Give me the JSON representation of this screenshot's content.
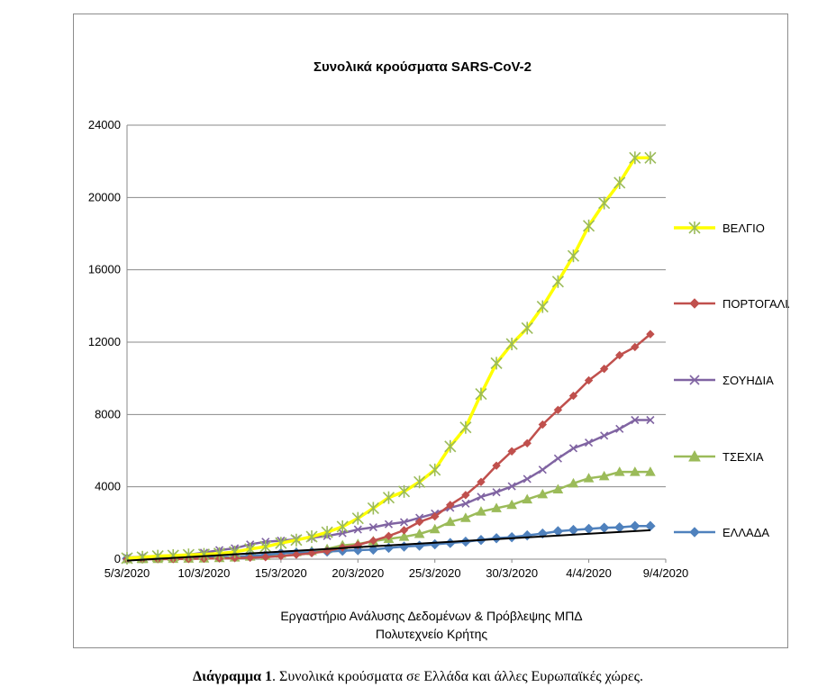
{
  "chart_data": {
    "type": "line",
    "title": "Συνολικά κρούσματα SARS-CoV-2",
    "source_lines": [
      "Εργαστήριο Ανάλυσης Δεδομένων & Πρόβλεψης ΜΠΔ",
      "Πολυτεχνείο Κρήτης"
    ],
    "x_ticks": [
      "5/3/2020",
      "10/3/2020",
      "15/3/2020",
      "20/3/2020",
      "25/3/2020",
      "30/3/2020",
      "4/4/2020",
      "9/4/2020"
    ],
    "x_start": "5/3/2020",
    "x_end": "9/4/2020",
    "ylim": [
      0,
      24000
    ],
    "y_ticks": [
      0,
      4000,
      8000,
      12000,
      16000,
      20000,
      24000
    ],
    "grid": "horizontal",
    "legend_position": "right",
    "x": [
      "5/3/2020",
      "6/3/2020",
      "7/3/2020",
      "8/3/2020",
      "9/3/2020",
      "10/3/2020",
      "11/3/2020",
      "12/3/2020",
      "13/3/2020",
      "14/3/2020",
      "15/3/2020",
      "16/3/2020",
      "17/3/2020",
      "18/3/2020",
      "19/3/2020",
      "20/3/2020",
      "21/3/2020",
      "22/3/2020",
      "23/3/2020",
      "24/3/2020",
      "25/3/2020",
      "26/3/2020",
      "27/3/2020",
      "28/3/2020",
      "29/3/2020",
      "30/3/2020",
      "31/3/2020",
      "1/4/2020",
      "2/4/2020",
      "3/4/2020",
      "4/4/2020",
      "5/4/2020",
      "6/4/2020",
      "7/4/2020",
      "8/4/2020"
    ],
    "series": [
      {
        "name": "ΒΕΛΓΙΟ",
        "color": "#ffff00",
        "marker": "star",
        "values": [
          50,
          109,
          169,
          200,
          239,
          267,
          314,
          399,
          559,
          689,
          886,
          1058,
          1243,
          1486,
          1795,
          2257,
          2815,
          3401,
          3743,
          4269,
          4937,
          6235,
          7284,
          9134,
          10836,
          11899,
          12775,
          13964,
          15348,
          16770,
          18431,
          19691,
          20814,
          22194,
          22194
        ]
      },
      {
        "name": "ΠΟΡΤΟΓΑΛΙΑ",
        "color": "#c0504d",
        "marker": "diamond",
        "values": [
          0,
          0,
          2,
          5,
          10,
          30,
          41,
          59,
          78,
          112,
          169,
          245,
          331,
          448,
          642,
          785,
          1020,
          1280,
          1600,
          2060,
          2362,
          2995,
          3544,
          4268,
          5170,
          5962,
          6408,
          7443,
          8251,
          9034,
          9886,
          10524,
          11278,
          11730,
          12442
        ]
      },
      {
        "name": "ΣΟΥΗΔΙΑ",
        "color": "#8064a2",
        "marker": "cross",
        "values": [
          87,
          137,
          161,
          203,
          248,
          355,
          500,
          599,
          814,
          961,
          1022,
          1103,
          1190,
          1279,
          1439,
          1639,
          1763,
          1934,
          2046,
          2286,
          2526,
          2840,
          3069,
          3447,
          3700,
          4028,
          4435,
          4947,
          5568,
          6131,
          6443,
          6830,
          7206,
          7693,
          7693
        ]
      },
      {
        "name": "ΤΣΕΧΙΑ",
        "color": "#9bbb59",
        "marker": "triangle",
        "values": [
          3,
          8,
          12,
          19,
          31,
          38,
          63,
          94,
          141,
          189,
          298,
          383,
          450,
          560,
          765,
          833,
          995,
          1120,
          1236,
          1394,
          1654,
          2062,
          2279,
          2631,
          2817,
          3001,
          3308,
          3589,
          3858,
          4190,
          4472,
          4587,
          4822,
          4822,
          4822
        ]
      },
      {
        "name": "ΕΛΛΑΔΑ",
        "color": "#4f81bd",
        "marker": "diamond",
        "values": [
          31,
          45,
          66,
          73,
          84,
          89,
          99,
          117,
          190,
          228,
          331,
          352,
          387,
          418,
          464,
          495,
          530,
          624,
          695,
          743,
          821,
          892,
          966,
          1061,
          1156,
          1212,
          1314,
          1415,
          1544,
          1613,
          1673,
          1735,
          1755,
          1832,
          1832
        ]
      }
    ],
    "trendline": {
      "series": "ΕΛΛΑΔΑ",
      "color": "#000000",
      "start_value": -80,
      "end_value": 1600
    }
  },
  "caption": {
    "bold": "Διάγραμμα 1",
    "text": ". Συνολικά κρούσματα σε Ελλάδα και άλλες Ευρωπαϊκές χώρες."
  }
}
